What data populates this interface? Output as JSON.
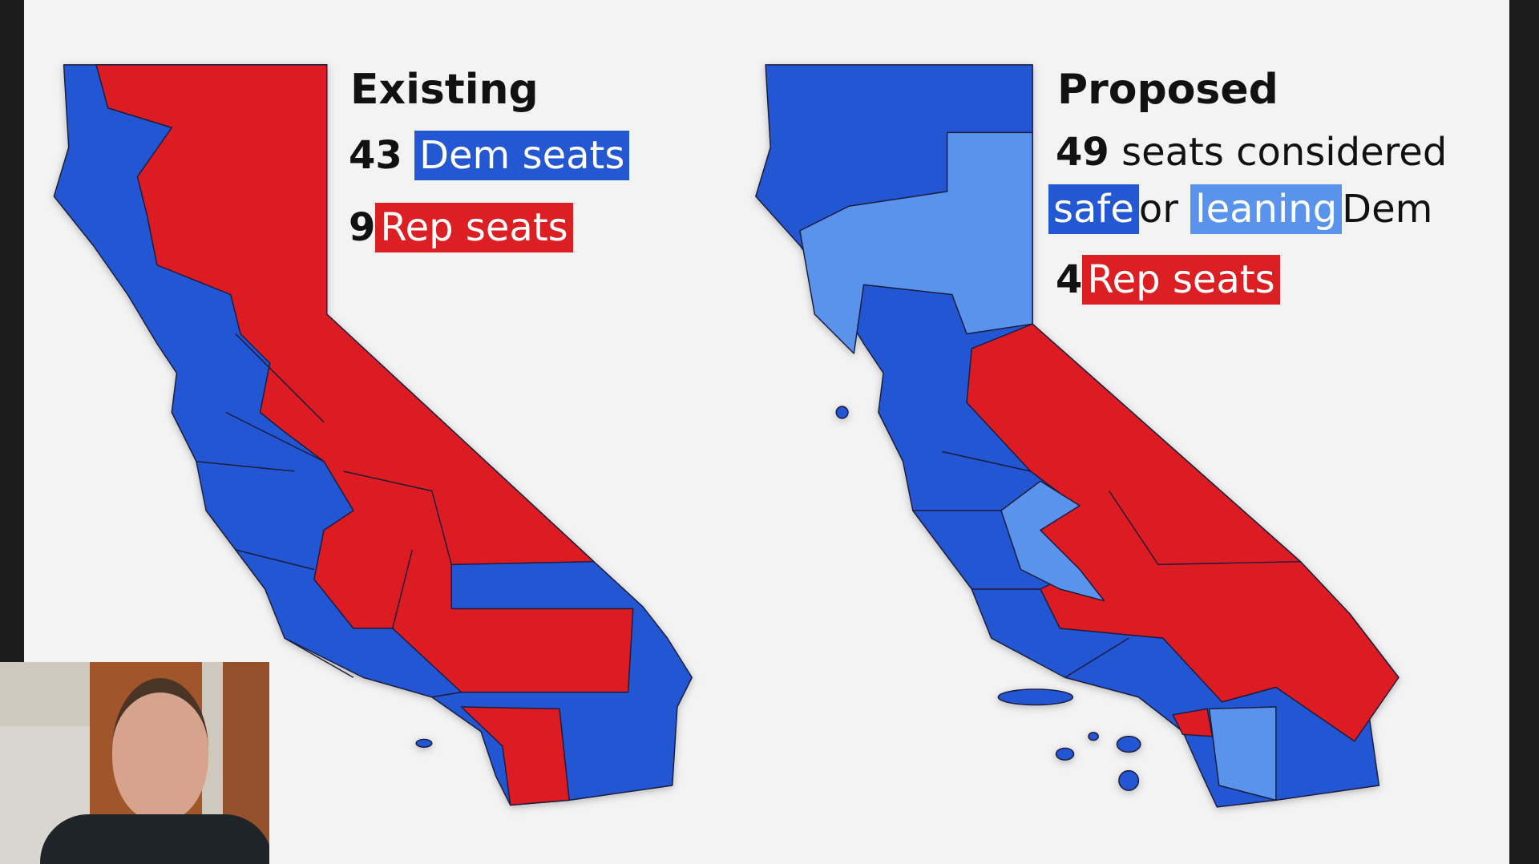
{
  "colors": {
    "safe_dem": "#2457d2",
    "leaning_dem": "#5a93ec",
    "rep": "#dc1f22",
    "background": "#f3f3f3"
  },
  "existing": {
    "title": "Existing",
    "dem_count": "43",
    "dem_label": "Dem seats",
    "rep_count": "9",
    "rep_label": "Rep seats"
  },
  "proposed": {
    "title": "Proposed",
    "dem_count": "49",
    "dem_text": "seats considered",
    "safe_label": "safe",
    "or_text": "or",
    "leaning_label": "leaning",
    "dem_suffix": "Dem",
    "rep_count": "4",
    "rep_label": "Rep seats"
  },
  "webcam": {
    "description_icon": "presenter-webcam"
  }
}
